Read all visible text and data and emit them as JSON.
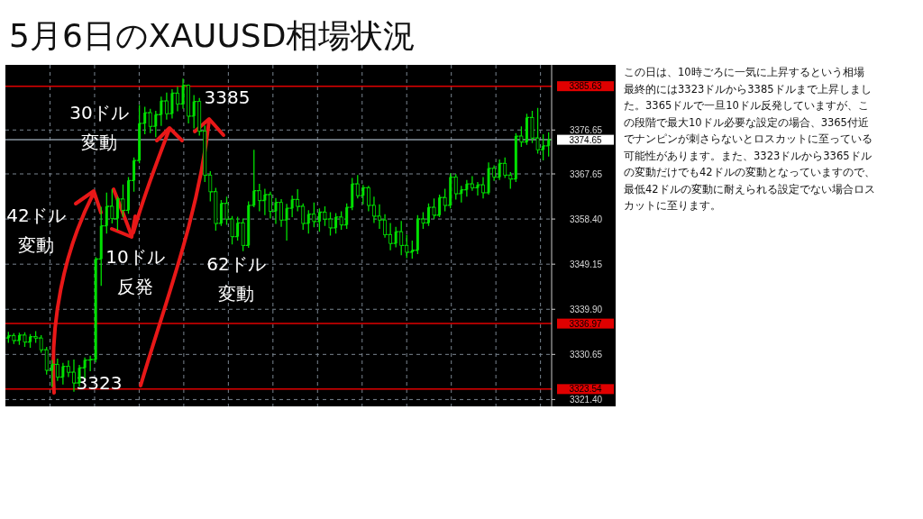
{
  "chart_data": {
    "type": "candlestick",
    "title": "5月6日のXAUUSD相場状況",
    "categories": [
      null,
      null,
      null,
      null,
      null,
      null,
      null,
      null,
      null,
      null,
      null,
      null,
      null,
      null,
      null,
      null,
      null,
      null,
      null,
      null,
      null,
      null,
      null,
      null,
      null,
      null,
      null,
      null,
      null,
      null,
      null,
      null,
      null,
      null,
      null,
      null,
      null,
      null,
      null,
      null,
      null,
      null,
      null,
      null,
      null,
      null,
      null,
      null,
      null,
      null,
      null,
      null,
      null,
      null,
      null,
      null,
      null,
      null,
      null,
      null,
      null,
      null,
      null,
      null,
      null,
      null,
      null,
      null,
      null,
      null,
      null,
      null,
      null,
      null,
      null,
      null,
      null,
      null,
      null,
      null,
      null,
      null,
      null,
      null,
      null,
      null,
      null,
      null,
      null,
      null,
      null,
      null,
      null,
      null,
      null,
      null,
      null,
      null,
      null,
      null
    ],
    "ohlc": [
      [
        3334.0,
        3335.3,
        3333.0,
        3334.5
      ],
      [
        3334.5,
        3335.0,
        3332.8,
        3333.5
      ],
      [
        3333.5,
        3335.1,
        3332.6,
        3334.6
      ],
      [
        3334.6,
        3335.2,
        3332.2,
        3333.2
      ],
      [
        3333.2,
        3334.8,
        3332.0,
        3334.3
      ],
      [
        3334.3,
        3335.4,
        3333.0,
        3334.0
      ],
      [
        3334.0,
        3334.6,
        3331.0,
        3331.6
      ],
      [
        3331.6,
        3332.2,
        3326.5,
        3327.4
      ],
      [
        3327.4,
        3329.5,
        3324.0,
        3328.6
      ],
      [
        3328.6,
        3329.8,
        3325.2,
        3326.0
      ],
      [
        3326.0,
        3328.9,
        3324.5,
        3328.2
      ],
      [
        3328.2,
        3329.4,
        3326.0,
        3327.0
      ],
      [
        3327.0,
        3329.6,
        3323.0,
        3324.8
      ],
      [
        3324.8,
        3328.5,
        3324.0,
        3327.9
      ],
      [
        3327.9,
        3330.0,
        3325.8,
        3329.5
      ],
      [
        3329.5,
        3330.4,
        3327.2,
        3329.6
      ],
      [
        3329.6,
        3350.6,
        3329.0,
        3350.2
      ],
      [
        3350.2,
        3360.9,
        3344.7,
        3357.0
      ],
      [
        3357.0,
        3363.8,
        3355.4,
        3361.0
      ],
      [
        3361.0,
        3364.5,
        3357.5,
        3358.5
      ],
      [
        3358.5,
        3363.0,
        3356.0,
        3362.5
      ],
      [
        3362.5,
        3365.5,
        3358.8,
        3360.2
      ],
      [
        3360.2,
        3367.0,
        3359.5,
        3366.3
      ],
      [
        3366.3,
        3371.0,
        3364.0,
        3370.4
      ],
      [
        3370.4,
        3381.8,
        3369.8,
        3378.0
      ],
      [
        3378.0,
        3381.4,
        3375.8,
        3380.2
      ],
      [
        3380.2,
        3381.0,
        3376.0,
        3377.4
      ],
      [
        3377.4,
        3380.6,
        3375.2,
        3379.8
      ],
      [
        3379.8,
        3383.5,
        3377.5,
        3382.6
      ],
      [
        3382.6,
        3384.3,
        3378.8,
        3380.0
      ],
      [
        3380.0,
        3385.0,
        3379.0,
        3384.2
      ],
      [
        3384.2,
        3385.5,
        3380.5,
        3382.0
      ],
      [
        3382.0,
        3387.2,
        3381.0,
        3385.8
      ],
      [
        3385.8,
        3386.0,
        3378.0,
        3379.5
      ],
      [
        3379.5,
        3383.8,
        3377.0,
        3382.5
      ],
      [
        3382.5,
        3383.2,
        3375.5,
        3376.4
      ],
      [
        3376.4,
        3377.6,
        3366.0,
        3367.4
      ],
      [
        3367.4,
        3368.2,
        3362.0,
        3364.0
      ],
      [
        3364.0,
        3364.8,
        3356.0,
        3357.5
      ],
      [
        3357.5,
        3362.3,
        3357.0,
        3361.6
      ],
      [
        3361.6,
        3363.0,
        3357.2,
        3358.4
      ],
      [
        3358.4,
        3359.0,
        3353.2,
        3354.8
      ],
      [
        3354.8,
        3358.9,
        3354.0,
        3357.6
      ],
      [
        3357.6,
        3358.5,
        3351.8,
        3353.0
      ],
      [
        3353.0,
        3362.0,
        3352.5,
        3361.2
      ],
      [
        3361.2,
        3372.6,
        3360.8,
        3364.2
      ],
      [
        3364.2,
        3365.6,
        3360.0,
        3362.2
      ],
      [
        3362.2,
        3364.6,
        3359.2,
        3363.4
      ],
      [
        3363.4,
        3364.0,
        3358.5,
        3360.0
      ],
      [
        3360.0,
        3362.7,
        3357.4,
        3361.8
      ],
      [
        3361.8,
        3362.5,
        3356.8,
        3358.2
      ],
      [
        3358.2,
        3361.5,
        3354.0,
        3360.6
      ],
      [
        3360.6,
        3363.2,
        3358.8,
        3362.4
      ],
      [
        3362.4,
        3364.5,
        3360.0,
        3361.0
      ],
      [
        3361.0,
        3361.6,
        3356.2,
        3357.5
      ],
      [
        3357.5,
        3360.2,
        3355.4,
        3359.4
      ],
      [
        3359.4,
        3361.8,
        3356.7,
        3357.9
      ],
      [
        3357.9,
        3360.6,
        3355.8,
        3359.8
      ],
      [
        3359.8,
        3361.0,
        3357.0,
        3358.4
      ],
      [
        3358.4,
        3359.8,
        3355.0,
        3356.6
      ],
      [
        3356.6,
        3359.6,
        3355.4,
        3358.8
      ],
      [
        3358.8,
        3360.0,
        3356.2,
        3357.2
      ],
      [
        3357.2,
        3361.6,
        3356.4,
        3360.8
      ],
      [
        3360.8,
        3366.8,
        3360.2,
        3365.6
      ],
      [
        3365.6,
        3367.4,
        3362.6,
        3363.2
      ],
      [
        3363.2,
        3365.4,
        3361.4,
        3364.8
      ],
      [
        3364.8,
        3365.2,
        3360.0,
        3361.2
      ],
      [
        3361.2,
        3363.0,
        3357.6,
        3359.0
      ],
      [
        3359.0,
        3361.4,
        3356.4,
        3358.2
      ],
      [
        3358.2,
        3359.4,
        3354.6,
        3355.2
      ],
      [
        3355.2,
        3357.6,
        3352.0,
        3353.4
      ],
      [
        3353.4,
        3356.8,
        3352.6,
        3355.8
      ],
      [
        3355.8,
        3358.0,
        3351.0,
        3353.0
      ],
      [
        3353.0,
        3355.2,
        3350.4,
        3351.6
      ],
      [
        3351.6,
        3354.0,
        3350.3,
        3352.0
      ],
      [
        3352.0,
        3359.2,
        3351.2,
        3358.4
      ],
      [
        3358.4,
        3359.8,
        3356.4,
        3357.6
      ],
      [
        3357.6,
        3361.6,
        3357.0,
        3360.8
      ],
      [
        3360.8,
        3362.6,
        3358.4,
        3359.2
      ],
      [
        3359.2,
        3363.4,
        3358.8,
        3362.8
      ],
      [
        3362.8,
        3364.6,
        3360.0,
        3361.2
      ],
      [
        3361.2,
        3367.8,
        3360.6,
        3367.0
      ],
      [
        3367.0,
        3367.6,
        3362.4,
        3363.6
      ],
      [
        3363.6,
        3365.2,
        3361.8,
        3364.4
      ],
      [
        3364.4,
        3366.4,
        3363.0,
        3365.6
      ],
      [
        3365.6,
        3367.2,
        3364.2,
        3364.8
      ],
      [
        3364.8,
        3366.0,
        3363.2,
        3365.4
      ],
      [
        3365.4,
        3367.0,
        3362.6,
        3363.8
      ],
      [
        3363.8,
        3370.0,
        3363.4,
        3368.8
      ],
      [
        3368.8,
        3369.4,
        3366.2,
        3367.0
      ],
      [
        3367.0,
        3370.6,
        3366.4,
        3369.8
      ],
      [
        3369.8,
        3371.0,
        3366.8,
        3367.4
      ],
      [
        3367.4,
        3368.0,
        3364.6,
        3366.6
      ],
      [
        3366.6,
        3376.0,
        3366.0,
        3375.4
      ],
      [
        3375.4,
        3377.4,
        3373.2,
        3374.2
      ],
      [
        3374.2,
        3380.0,
        3373.6,
        3379.2
      ],
      [
        3379.2,
        3380.6,
        3374.0,
        3375.0
      ],
      [
        3375.0,
        3381.2,
        3371.8,
        3372.6
      ],
      [
        3372.6,
        3375.8,
        3370.4,
        3373.4
      ],
      [
        3373.4,
        3376.2,
        3371.2,
        3374.65
      ]
    ],
    "color": "#00e000",
    "ylim": [
      3320,
      3390
    ],
    "yticks": [
      {
        "value": 3321.4,
        "label": "3321.40"
      },
      {
        "value": 3330.65,
        "label": "3330.65"
      },
      {
        "value": 3339.9,
        "label": "3339.90"
      },
      {
        "value": 3349.15,
        "label": "3349.15"
      },
      {
        "value": 3358.4,
        "label": "3358.40"
      },
      {
        "value": 3367.65,
        "label": "3367.65"
      },
      {
        "value": 3376.65,
        "label": "3376.65"
      }
    ],
    "grid": true,
    "ref_lines": [
      {
        "axis": "y",
        "value": 3385.63,
        "label": "3385.63",
        "color": "#e00000"
      },
      {
        "axis": "y",
        "value": 3374.65,
        "label": "3374.65",
        "color": "#8a96a0"
      },
      {
        "axis": "y",
        "value": 3336.97,
        "label": "3336.97",
        "color": "#e00000"
      },
      {
        "axis": "y",
        "value": 3323.54,
        "label": "3323.54",
        "color": "#e00000"
      }
    ],
    "annotations": [
      "30ドル変動",
      "42ドル変動",
      "10ドル反発",
      "62ドル変動",
      "3385",
      "3323",
      "この日は、10時ごろに一気に上昇するという相場最終的には3323ドルから3385ドルまで上昇しました。3365ドルで一旦10ドル反発していますが、この段階で最大10ドル必要な設定の場合、3365付近でナンピンが刺さらないとロスカットに至っている可能性があります。また、3323ドルから3365ドルの変動だけでも42ドルの変動となっていますので、最低42ドルの変動に耐えられる設定でない場合ロスカットに至ります。"
    ]
  }
}
